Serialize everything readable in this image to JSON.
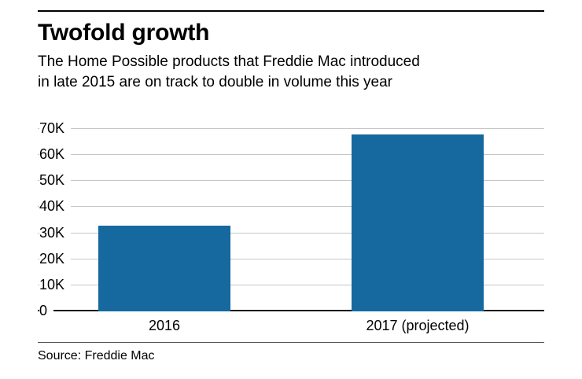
{
  "header": {
    "title": "Twofold growth",
    "subtitle_line1": "The Home Possible products that Freddie Mac introduced",
    "subtitle_line2": "in late 2015 are on track to double in volume this year"
  },
  "footer": {
    "source": "Source: Freddie Mac"
  },
  "chart_data": {
    "type": "bar",
    "title": "Twofold growth",
    "subtitle": "The Home Possible products that Freddie Mac introduced in late 2015 are on track to double in volume this year",
    "categories": [
      "2016",
      "2017 (projected)"
    ],
    "values": [
      33000,
      68000
    ],
    "ylim": [
      0,
      70000
    ],
    "yticks": [
      "70K",
      "60K",
      "50K",
      "40K",
      "30K",
      "20K",
      "10K",
      "0"
    ],
    "ytick_values": [
      70000,
      60000,
      50000,
      40000,
      30000,
      20000,
      10000,
      0
    ],
    "ylabel": "",
    "xlabel": "",
    "grid": true,
    "legend": "none",
    "bar_color": "#16699e",
    "gridline_color": "#c6c6c6",
    "axis_color": "#1a1a1a",
    "source": "Source: Freddie Mac"
  }
}
